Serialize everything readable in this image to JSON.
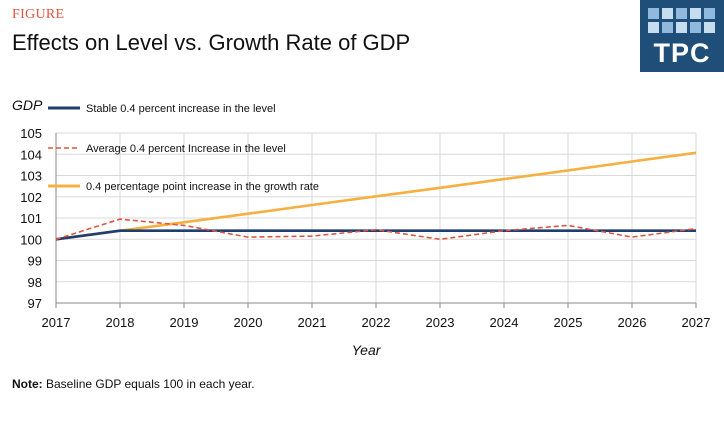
{
  "header": {
    "eyebrow": "FIGURE",
    "title": "Effects on Level vs. Growth Rate of GDP",
    "logo_text": "TPC"
  },
  "note": {
    "label": "Note:",
    "text": " Baseline GDP equals 100 in each year."
  },
  "colors": {
    "stable": "#1f3f6e",
    "average": "#e0553f",
    "growth": "#f5b041",
    "grid": "#d9d9d9"
  },
  "chart_data": {
    "type": "line",
    "title": "Effects on Level vs. Growth Rate of GDP",
    "xlabel": "Year",
    "ylabel": "GDP",
    "x": [
      2017,
      2018,
      2019,
      2020,
      2021,
      2022,
      2023,
      2024,
      2025,
      2026,
      2027
    ],
    "xlim": [
      2017,
      2027
    ],
    "ylim": [
      97,
      105
    ],
    "yticks": [
      97,
      98,
      99,
      100,
      101,
      102,
      103,
      104,
      105
    ],
    "grid": true,
    "legend_position": "top-left",
    "series": [
      {
        "name": "Stable 0.4 percent increase in the level",
        "style": "solid",
        "color": "#1f3f6e",
        "values": [
          100,
          100.4,
          100.4,
          100.4,
          100.4,
          100.4,
          100.4,
          100.4,
          100.4,
          100.4,
          100.4
        ]
      },
      {
        "name": "Average 0.4 percent Increase in the level",
        "style": "dashed",
        "color": "#e0553f",
        "values": [
          100,
          100.95,
          100.65,
          100.1,
          100.15,
          100.45,
          100.0,
          100.4,
          100.65,
          100.1,
          100.5
        ]
      },
      {
        "name": "0.4 percentage point increase in the growth rate",
        "style": "solid",
        "color": "#f5b041",
        "values": [
          100,
          100.4,
          100.8,
          101.2,
          101.61,
          102.02,
          102.42,
          102.83,
          103.24,
          103.66,
          104.07
        ]
      }
    ]
  }
}
